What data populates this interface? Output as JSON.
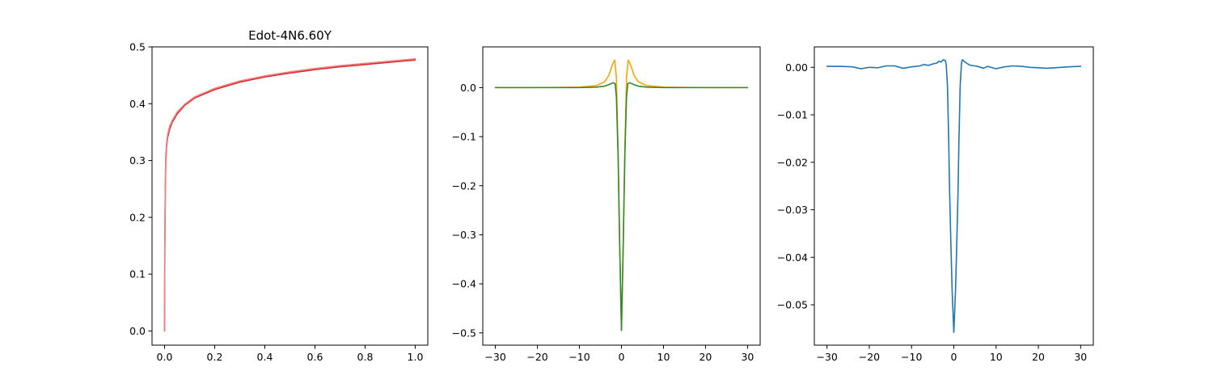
{
  "chart_data": [
    {
      "type": "line",
      "title": "Edot-4N6.60Y",
      "xlabel": "",
      "ylabel": "",
      "xlim": [
        -0.05,
        1.05
      ],
      "ylim": [
        -0.025,
        0.5
      ],
      "xticks": [
        0.0,
        0.2,
        0.4,
        0.6,
        0.8,
        1.0
      ],
      "xtick_labels": [
        "0.0",
        "0.2",
        "0.4",
        "0.6",
        "0.8",
        "1.0"
      ],
      "yticks": [
        0.0,
        0.1,
        0.2,
        0.3,
        0.4,
        0.5
      ],
      "ytick_labels": [
        "0.0",
        "0.1",
        "0.2",
        "0.3",
        "0.4",
        "0.5"
      ],
      "grid": false,
      "series": [
        {
          "color": "#d62728",
          "x": [
            0.0,
            0.001,
            0.003,
            0.005,
            0.008,
            0.012,
            0.02,
            0.03,
            0.05,
            0.08,
            0.12,
            0.2,
            0.3,
            0.4,
            0.5,
            0.6,
            0.7,
            0.8,
            0.9,
            1.0
          ],
          "y": [
            0.0,
            0.14,
            0.25,
            0.3,
            0.325,
            0.34,
            0.355,
            0.367,
            0.382,
            0.397,
            0.41,
            0.425,
            0.438,
            0.447,
            0.454,
            0.46,
            0.465,
            0.469,
            0.473,
            0.477
          ]
        },
        {
          "color": "#f08080",
          "x": [
            0.0,
            0.001,
            0.003,
            0.005,
            0.008,
            0.012,
            0.02,
            0.03,
            0.05,
            0.08,
            0.12,
            0.2,
            0.3,
            0.4,
            0.5,
            0.6,
            0.7,
            0.8,
            0.9,
            1.0
          ],
          "y": [
            0.0,
            0.15,
            0.26,
            0.31,
            0.33,
            0.345,
            0.36,
            0.37,
            0.385,
            0.399,
            0.412,
            0.427,
            0.44,
            0.449,
            0.456,
            0.462,
            0.467,
            0.471,
            0.475,
            0.479
          ]
        }
      ]
    },
    {
      "type": "line",
      "title": "",
      "xlabel": "",
      "ylabel": "",
      "xlim": [
        -33,
        33
      ],
      "ylim": [
        -0.525,
        0.083
      ],
      "xticks": [
        -30,
        -20,
        -10,
        0,
        10,
        20,
        30
      ],
      "xtick_labels": [
        "−30",
        "−20",
        "−10",
        "0",
        "10",
        "20",
        "30"
      ],
      "yticks": [
        0.0,
        -0.1,
        -0.2,
        -0.3,
        -0.4,
        -0.5
      ],
      "ytick_labels": [
        "0.0",
        "−0.1",
        "−0.2",
        "−0.3",
        "−0.4",
        "−0.5"
      ],
      "grid": false,
      "series": [
        {
          "color": "#ffa500",
          "x": [
            -30,
            -20,
            -10,
            -6,
            -4,
            -3,
            -2.5,
            -2,
            -1.6,
            -1.2,
            -0.8,
            -0.4,
            0,
            0.4,
            0.8,
            1.2,
            1.6,
            2,
            2.5,
            3,
            4,
            6,
            10,
            20,
            30
          ],
          "y": [
            0.0,
            0.0,
            0.001,
            0.004,
            0.012,
            0.025,
            0.038,
            0.05,
            0.056,
            0.02,
            -0.13,
            -0.33,
            -0.495,
            -0.33,
            -0.13,
            0.02,
            0.056,
            0.05,
            0.038,
            0.025,
            0.012,
            0.004,
            0.001,
            0.0,
            0.0
          ]
        },
        {
          "color": "#2e8b2e",
          "x": [
            -30,
            -20,
            -10,
            -6,
            -4,
            -3,
            -2,
            -1.5,
            -1.2,
            -0.8,
            -0.4,
            0,
            0.4,
            0.8,
            1.2,
            1.5,
            2,
            3,
            4,
            6,
            10,
            20,
            30
          ],
          "y": [
            0.0,
            0.0,
            0.0,
            0.001,
            0.003,
            0.006,
            0.01,
            0.008,
            -0.02,
            -0.14,
            -0.33,
            -0.495,
            -0.33,
            -0.14,
            -0.02,
            0.008,
            0.01,
            0.006,
            0.003,
            0.001,
            0.0,
            0.0,
            0.0
          ]
        }
      ]
    },
    {
      "type": "line",
      "title": "",
      "xlabel": "",
      "ylabel": "",
      "xlim": [
        -33,
        33
      ],
      "ylim": [
        -0.0585,
        0.0043
      ],
      "xticks": [
        -30,
        -20,
        -10,
        0,
        10,
        20,
        30
      ],
      "xtick_labels": [
        "−30",
        "−20",
        "−10",
        "0",
        "10",
        "20",
        "30"
      ],
      "yticks": [
        0.0,
        -0.01,
        -0.02,
        -0.03,
        -0.04,
        -0.05
      ],
      "ytick_labels": [
        "0.00",
        "−0.01",
        "−0.02",
        "−0.03",
        "−0.04",
        "−0.05"
      ],
      "grid": false,
      "series": [
        {
          "color": "#1f77b4",
          "x": [
            -30,
            -27,
            -24,
            -22,
            -20,
            -18,
            -16,
            -14,
            -12,
            -10,
            -8,
            -7,
            -6,
            -5,
            -4,
            -3.5,
            -3,
            -2.5,
            -2,
            -1.8,
            -1.5,
            -1.2,
            -1,
            -0.7,
            -0.4,
            0,
            0.4,
            0.7,
            1,
            1.2,
            1.5,
            1.8,
            2,
            2.5,
            3,
            3.5,
            4,
            5,
            6,
            7,
            8,
            10,
            12,
            14,
            16,
            18,
            20,
            22,
            24,
            27,
            30
          ],
          "y": [
            0.0002,
            0.0002,
            0.0001,
            -0.0003,
            0.0,
            -0.0001,
            0.0003,
            0.0003,
            -0.0002,
            0.0001,
            0.0003,
            0.0006,
            0.0004,
            0.0007,
            0.0009,
            0.0013,
            0.0011,
            0.0016,
            0.0014,
            0.0006,
            -0.004,
            -0.016,
            -0.026,
            -0.037,
            -0.047,
            -0.0558,
            -0.047,
            -0.037,
            -0.026,
            -0.016,
            -0.004,
            0.0008,
            0.0016,
            0.0012,
            0.0009,
            0.0006,
            0.0004,
            0.0003,
            0.0001,
            -0.0002,
            0.0002,
            -0.0003,
            0.0001,
            0.0003,
            0.0002,
            0.0,
            -0.0001,
            -0.0002,
            -0.0001,
            0.0001,
            0.0002
          ]
        }
      ]
    }
  ]
}
